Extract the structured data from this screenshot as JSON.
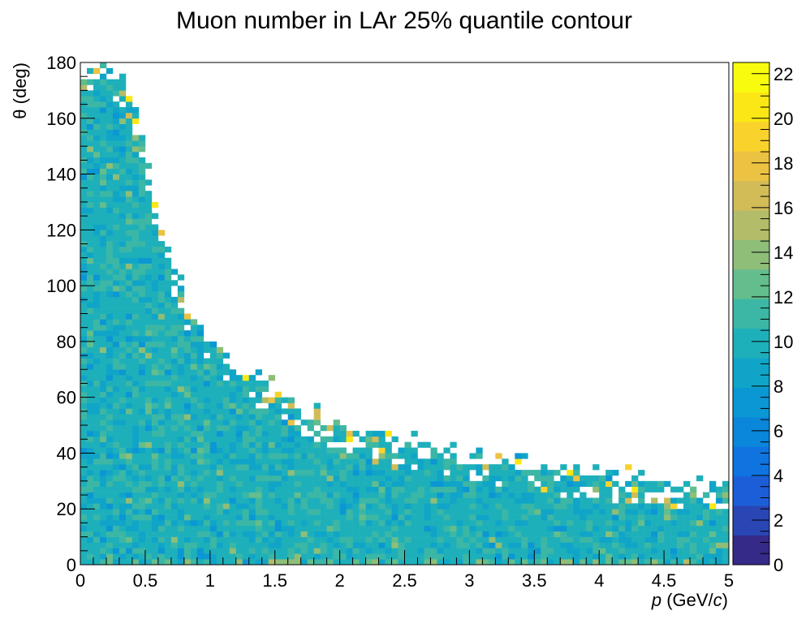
{
  "chart_data": {
    "type": "heatmap",
    "title": "Muon number in LAr 25% quantile contour",
    "xlabel_italic": "p",
    "xlabel_prefix": " (GeV/",
    "xlabel_italic2": "c",
    "xlabel_suffix": ")",
    "ylabel": "θ (deg)",
    "xlim": [
      0,
      5
    ],
    "ylim": [
      0,
      180
    ],
    "zlim": [
      0,
      22.5
    ],
    "x_ticks": [
      "0",
      "0.5",
      "1",
      "1.5",
      "2",
      "2.5",
      "3",
      "3.5",
      "4",
      "4.5",
      "5"
    ],
    "x_tick_values": [
      0,
      0.5,
      1,
      1.5,
      2,
      2.5,
      3,
      3.5,
      4,
      4.5,
      5
    ],
    "y_ticks": [
      "0",
      "20",
      "40",
      "60",
      "80",
      "100",
      "120",
      "140",
      "160",
      "180"
    ],
    "y_tick_values": [
      0,
      20,
      40,
      60,
      80,
      100,
      120,
      140,
      160,
      180
    ],
    "z_ticks": [
      "0",
      "2",
      "4",
      "6",
      "8",
      "10",
      "12",
      "14",
      "16",
      "18",
      "20",
      "22"
    ],
    "z_tick_values": [
      0,
      2,
      4,
      6,
      8,
      10,
      12,
      14,
      16,
      18,
      20,
      22
    ],
    "bins": {
      "nx": 100,
      "ny": 90,
      "x_bin_width": 0.05,
      "y_bin_width": 2
    },
    "typical_value": 10,
    "max_value": 22,
    "contour_boundary": {
      "p": [
        0.05,
        0.15,
        0.25,
        0.35,
        0.45,
        0.5,
        0.6,
        0.7,
        0.8,
        0.9,
        1.0,
        1.1,
        1.25,
        1.5,
        1.75,
        2.0,
        2.25,
        2.5,
        2.75,
        3.0,
        3.25,
        3.5,
        3.75,
        4.0,
        4.25,
        4.5,
        4.75,
        5.0
      ],
      "theta_max": [
        180,
        180,
        178,
        172,
        160,
        145,
        125,
        110,
        97,
        88,
        82,
        76,
        70,
        63,
        56,
        51,
        47,
        44,
        42,
        40,
        38,
        36,
        34,
        33,
        32,
        31,
        30,
        29
      ]
    },
    "palette": [
      "#352a87",
      "#2a46b4",
      "#1c5ed8",
      "#0f73e0",
      "#0a86db",
      "#0a97d4",
      "#10a5c8",
      "#1eb0ba",
      "#3cb7a5",
      "#63bd8d",
      "#8ebe78",
      "#b3bc68",
      "#d2bc58",
      "#ecc243",
      "#f9d32c",
      "#fbe716",
      "#f9fb0e"
    ],
    "grid": false,
    "legend": "none",
    "colorbar": "right"
  }
}
